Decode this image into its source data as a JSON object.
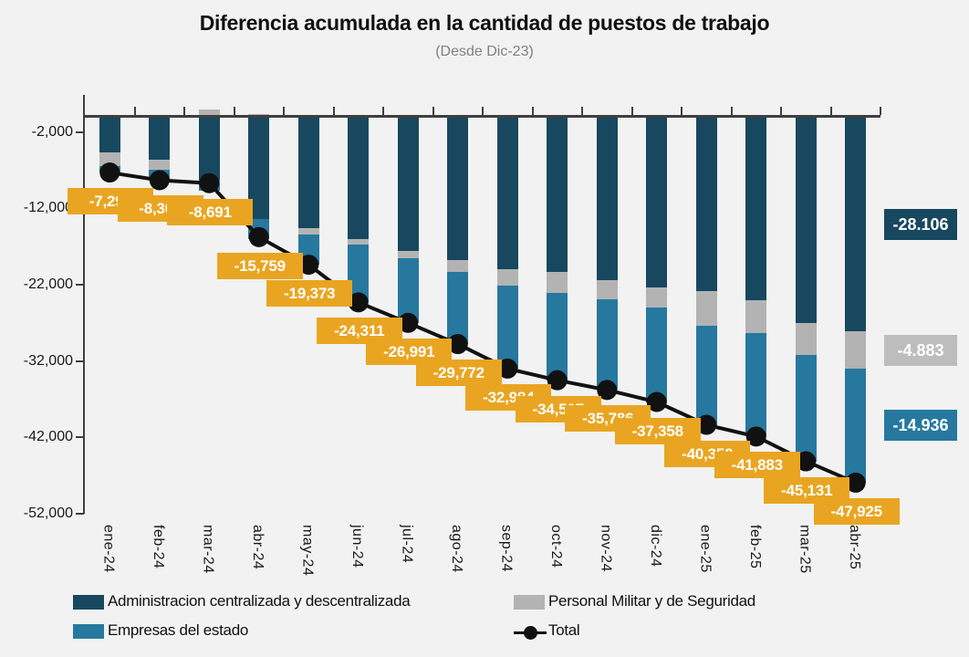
{
  "title": "Diferencia acumulada en la cantidad de puestos de trabajo",
  "subtitle": "(Desde Dic-23)",
  "colors": {
    "background": "#F2F2F2",
    "admin": "#17485F",
    "militar": "#B3B3B3",
    "empresas": "#26789F",
    "total_line": "#111111",
    "label_box": "#E9A521",
    "label_text": "#FFFFFF",
    "axis": "#3F3F3F",
    "callout_gray": "#BDBDBD"
  },
  "legend": {
    "items": [
      {
        "label": "Administracion centralizada y descentralizada",
        "color": "#17485F",
        "marker": "square"
      },
      {
        "label": "Personal Militar y de Seguridad",
        "color": "#B3B3B3",
        "marker": "square"
      },
      {
        "label": "Empresas del estado",
        "color": "#26789F",
        "marker": "square"
      },
      {
        "label": "Total",
        "color": "#111111",
        "marker": "line-dot"
      }
    ]
  },
  "chart_data": {
    "type": "bar",
    "stacked": true,
    "line_overlay": "Total",
    "title": "Diferencia acumulada en la cantidad de puestos de trabajo",
    "subtitle": "(Desde Dic-23)",
    "categories": [
      "ene-24",
      "feb-24",
      "mar-24",
      "abr-24",
      "may-24",
      "jun-24",
      "jul-24",
      "ago-24",
      "sep-24",
      "oct-24",
      "nov-24",
      "dic-24",
      "ene-25",
      "feb-25",
      "mar-25",
      "abr-25"
    ],
    "series": [
      {
        "name": "Administracion centralizada y descentralizada",
        "color": "#17485F",
        "values": [
          -4700,
          -5600,
          -8300,
          -13380,
          -14580,
          -15980,
          -17570,
          -18760,
          -19960,
          -20350,
          -21350,
          -22350,
          -22860,
          -24060,
          -27040,
          -28106
        ]
      },
      {
        "name": "Personal Militar y de Seguridad",
        "color": "#B3B3B3",
        "values": [
          -1800,
          -1350,
          1000,
          300,
          -840,
          -790,
          -990,
          -1590,
          -2190,
          -2680,
          -2580,
          -2590,
          -4470,
          -4270,
          -4180,
          -4883
        ]
      },
      {
        "name": "Empresas del estado",
        "color": "#26789F",
        "values": [
          -799,
          -1353,
          -1391,
          -2679,
          -3953,
          -7541,
          -8431,
          -9422,
          -10834,
          -11477,
          -11856,
          -12418,
          -13020,
          -13553,
          -13911,
          -14936
        ]
      }
    ],
    "totals": [
      -7299,
      -8303,
      -8691,
      -15759,
      -19373,
      -24311,
      -26991,
      -29772,
      -32984,
      -34507,
      -35786,
      -37358,
      -40350,
      -41883,
      -45131,
      -47925
    ],
    "total_labels": [
      "-7,299",
      "-8,303",
      "-8,691",
      "-15,759",
      "-19,373",
      "-24,311",
      "-26,991",
      "-29,772",
      "-32,984",
      "-34,507",
      "-35,786",
      "-37,358",
      "-40,350",
      "-41,883",
      "-45,131",
      "-47,925"
    ],
    "y_axis": {
      "ticks": [
        {
          "label": "-2,000",
          "value": -2000
        },
        {
          "label": "-12,000",
          "value": -12000
        },
        {
          "label": "-22,000",
          "value": -22000
        },
        {
          "label": "-32,000",
          "value": -32000
        },
        {
          "label": "-42,000",
          "value": -42000
        },
        {
          "label": "-52,000",
          "value": -52000
        }
      ]
    },
    "ylim": [
      -52000,
      0
    ],
    "grid": false,
    "legend_position": "bottom",
    "right_callouts": [
      {
        "label": "-28.106",
        "series": "Administracion centralizada y descentralizada",
        "color": "#17485F",
        "text_color": "#FFFFFF"
      },
      {
        "label": "-4.883",
        "series": "Personal Militar y de Seguridad",
        "color": "#BDBDBD",
        "text_color": "#FFFFFF"
      },
      {
        "label": "-14.936",
        "series": "Empresas del estado",
        "color": "#26789F",
        "text_color": "#FFFFFF"
      }
    ]
  }
}
